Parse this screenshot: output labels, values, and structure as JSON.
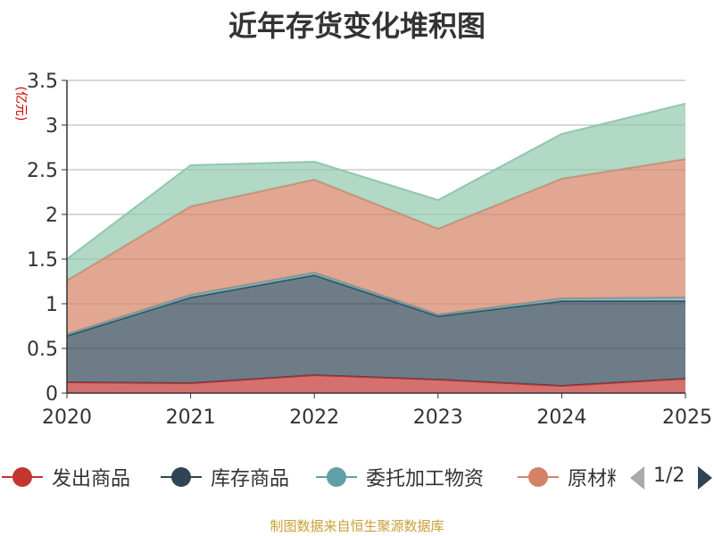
{
  "title": "近年存货变化堆积图",
  "source": "制图数据来自恒生聚源数据库",
  "pager": {
    "text": "1/2"
  },
  "chart_data": {
    "type": "area",
    "stacked": true,
    "title": "近年存货变化堆积图",
    "ylabel": "(亿元)",
    "xlabel": "",
    "x": [
      "2020",
      "2021",
      "2022",
      "2023",
      "2024",
      "2025"
    ],
    "ylim": [
      0,
      3.5
    ],
    "yticks": [
      "0",
      "0.5",
      "1",
      "1.5",
      "2",
      "2.5",
      "3",
      "3.5"
    ],
    "grid": true,
    "legend_position": "bottom",
    "series": [
      {
        "name": "发出商品",
        "color": "#c23531",
        "values": [
          0.12,
          0.11,
          0.2,
          0.15,
          0.08,
          0.16
        ]
      },
      {
        "name": "库存商品",
        "color": "#2f4554",
        "values": [
          0.52,
          0.96,
          1.12,
          0.71,
          0.95,
          0.87
        ]
      },
      {
        "name": "委托加工物资",
        "color": "#61a0a8",
        "values": [
          0.02,
          0.03,
          0.03,
          0.02,
          0.03,
          0.04
        ]
      },
      {
        "name": "原材料",
        "color": "#d48265",
        "values": [
          0.6,
          0.99,
          1.04,
          0.96,
          1.34,
          1.55
        ]
      },
      {
        "name": "",
        "color": "#91c7ae",
        "values": [
          0.24,
          0.46,
          0.2,
          0.32,
          0.5,
          0.62
        ]
      }
    ],
    "legend_visible": [
      "发出商品",
      "库存商品",
      "委托加工物资",
      "原材料"
    ]
  }
}
